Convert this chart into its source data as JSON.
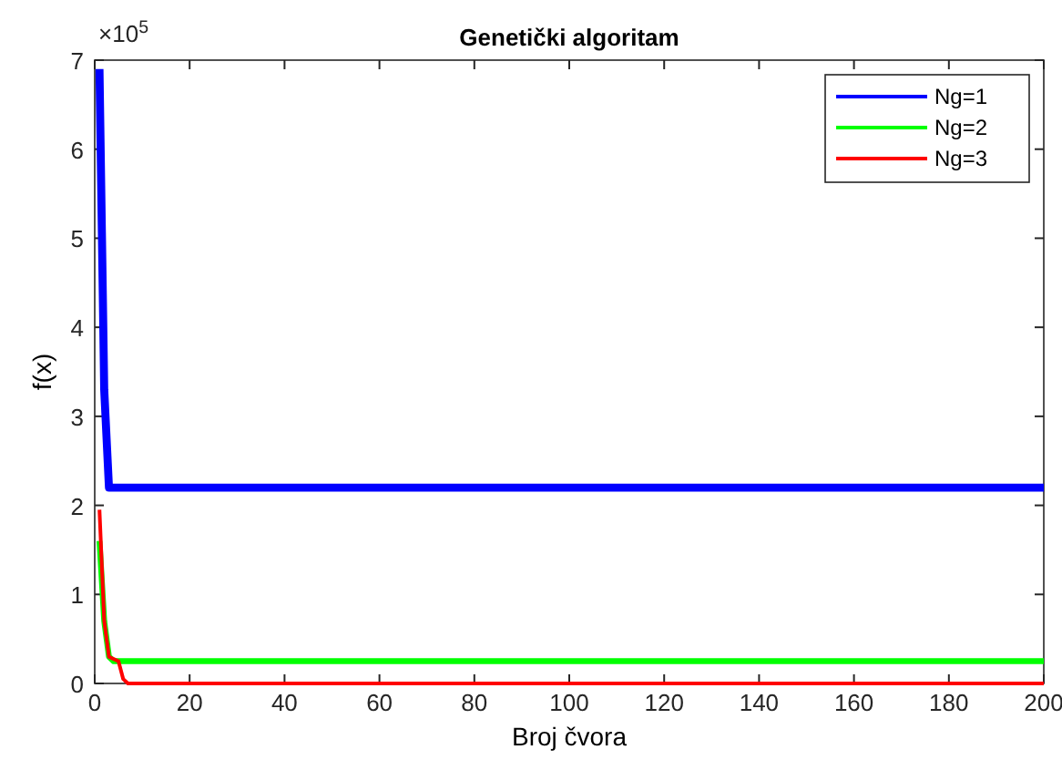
{
  "chart_data": {
    "type": "line",
    "title": "Genetički algoritam",
    "xlabel": "Broj čvora",
    "ylabel": "f(x)",
    "annotations": [
      "×10$^{5}$"
    ],
    "xlim": [
      0,
      200
    ],
    "xticks": [
      0,
      20,
      40,
      60,
      80,
      100,
      120,
      140,
      160,
      180,
      200
    ],
    "ylim": [
      0,
      7
    ],
    "yticks": [
      0,
      1,
      2,
      3,
      4,
      5,
      6,
      7
    ],
    "legend": "top right",
    "grid": false,
    "series": [
      {
        "name": "Ng=1",
        "color": "#0000ff",
        "x": [
          1,
          2,
          3,
          200
        ],
        "values": [
          6.9,
          3.3,
          2.2,
          2.2
        ]
      },
      {
        "name": "Ng=2",
        "color": "#00ff00",
        "x": [
          1,
          2,
          3,
          4,
          200
        ],
        "values": [
          1.6,
          0.7,
          0.3,
          0.25,
          0.25
        ]
      },
      {
        "name": "Ng=3",
        "color": "#ff0000",
        "x": [
          1,
          2,
          3,
          5,
          6,
          7,
          200
        ],
        "values": [
          1.95,
          0.7,
          0.3,
          0.25,
          0.05,
          0,
          0
        ]
      }
    ]
  }
}
